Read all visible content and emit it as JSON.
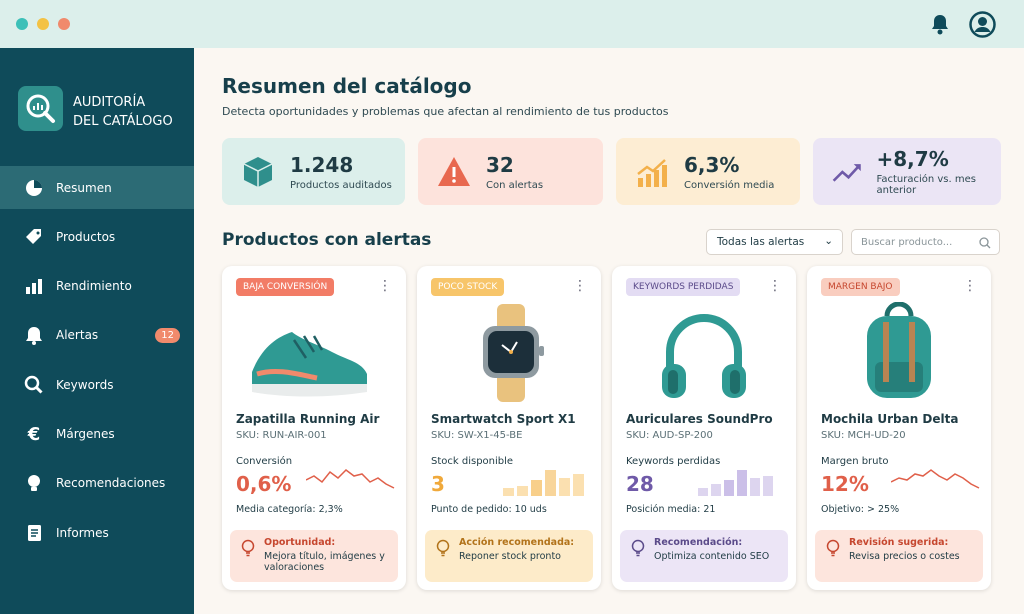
{
  "sidebar": {
    "brand": [
      "AUDITORÍA",
      "DEL CATÁLOGO"
    ],
    "nav": [
      {
        "label": "Resumen"
      },
      {
        "label": "Productos"
      },
      {
        "label": "Rendimiento"
      },
      {
        "label": "Alertas",
        "badge": 12
      },
      {
        "label": "Keywords"
      },
      {
        "label": "Márgenes"
      },
      {
        "label": "Recomendaciones"
      },
      {
        "label": "Informes"
      }
    ]
  },
  "header": {
    "title": "Resumen del catálogo",
    "subtitle": "Detecta oportunidades y problemas que afectan al rendimiento de tus productos"
  },
  "kpis": [
    {
      "value": "1.248",
      "label": "Productos auditados"
    },
    {
      "value": "32",
      "label": "Con alertas"
    },
    {
      "value": "6,3%",
      "label": "Conversión media"
    },
    {
      "value": "+8,7%",
      "label": "Facturación vs. mes anterior"
    }
  ],
  "section": {
    "title": "Productos con alertas",
    "filter": "Todas las alertas",
    "search_placeholder": "Buscar producto..."
  },
  "products": [
    {
      "tag": "BAJA CONVERSIÓN",
      "name": "Zapatilla Running Air",
      "sku": "SKU: RUN-AIR-001",
      "metric_label": "Conversión",
      "metric_value": "0,6%",
      "metric_note": "Media categoría: 2,3%",
      "advice_title": "Oportunidad:",
      "advice_text": "Mejora título, imágenes y valoraciones"
    },
    {
      "tag": "POCO STOCK",
      "name": "Smartwatch Sport X1",
      "sku": "SKU: SW-X1-45-BE",
      "metric_label": "Stock disponible",
      "metric_value": "3",
      "metric_note": "Punto de pedido: 10 uds",
      "advice_title": "Acción recomendada:",
      "advice_text": "Reponer stock pronto"
    },
    {
      "tag": "KEYWORDS PERDIDAS",
      "name": "Auriculares SoundPro",
      "sku": "SKU: AUD-SP-200",
      "metric_label": "Keywords perdidas",
      "metric_value": "28",
      "metric_note": "Posición media: 21",
      "advice_title": "Recomendación:",
      "advice_text": "Optimiza contenido SEO"
    },
    {
      "tag": "MARGEN BAJO",
      "name": "Mochila Urban Delta",
      "sku": "SKU: MCH-UD-20",
      "metric_label": "Margen bruto",
      "metric_value": "12%",
      "metric_note": "Objetivo: > 25%",
      "advice_title": "Revisión sugerida:",
      "advice_text": "Revisa precios o costes"
    }
  ]
}
